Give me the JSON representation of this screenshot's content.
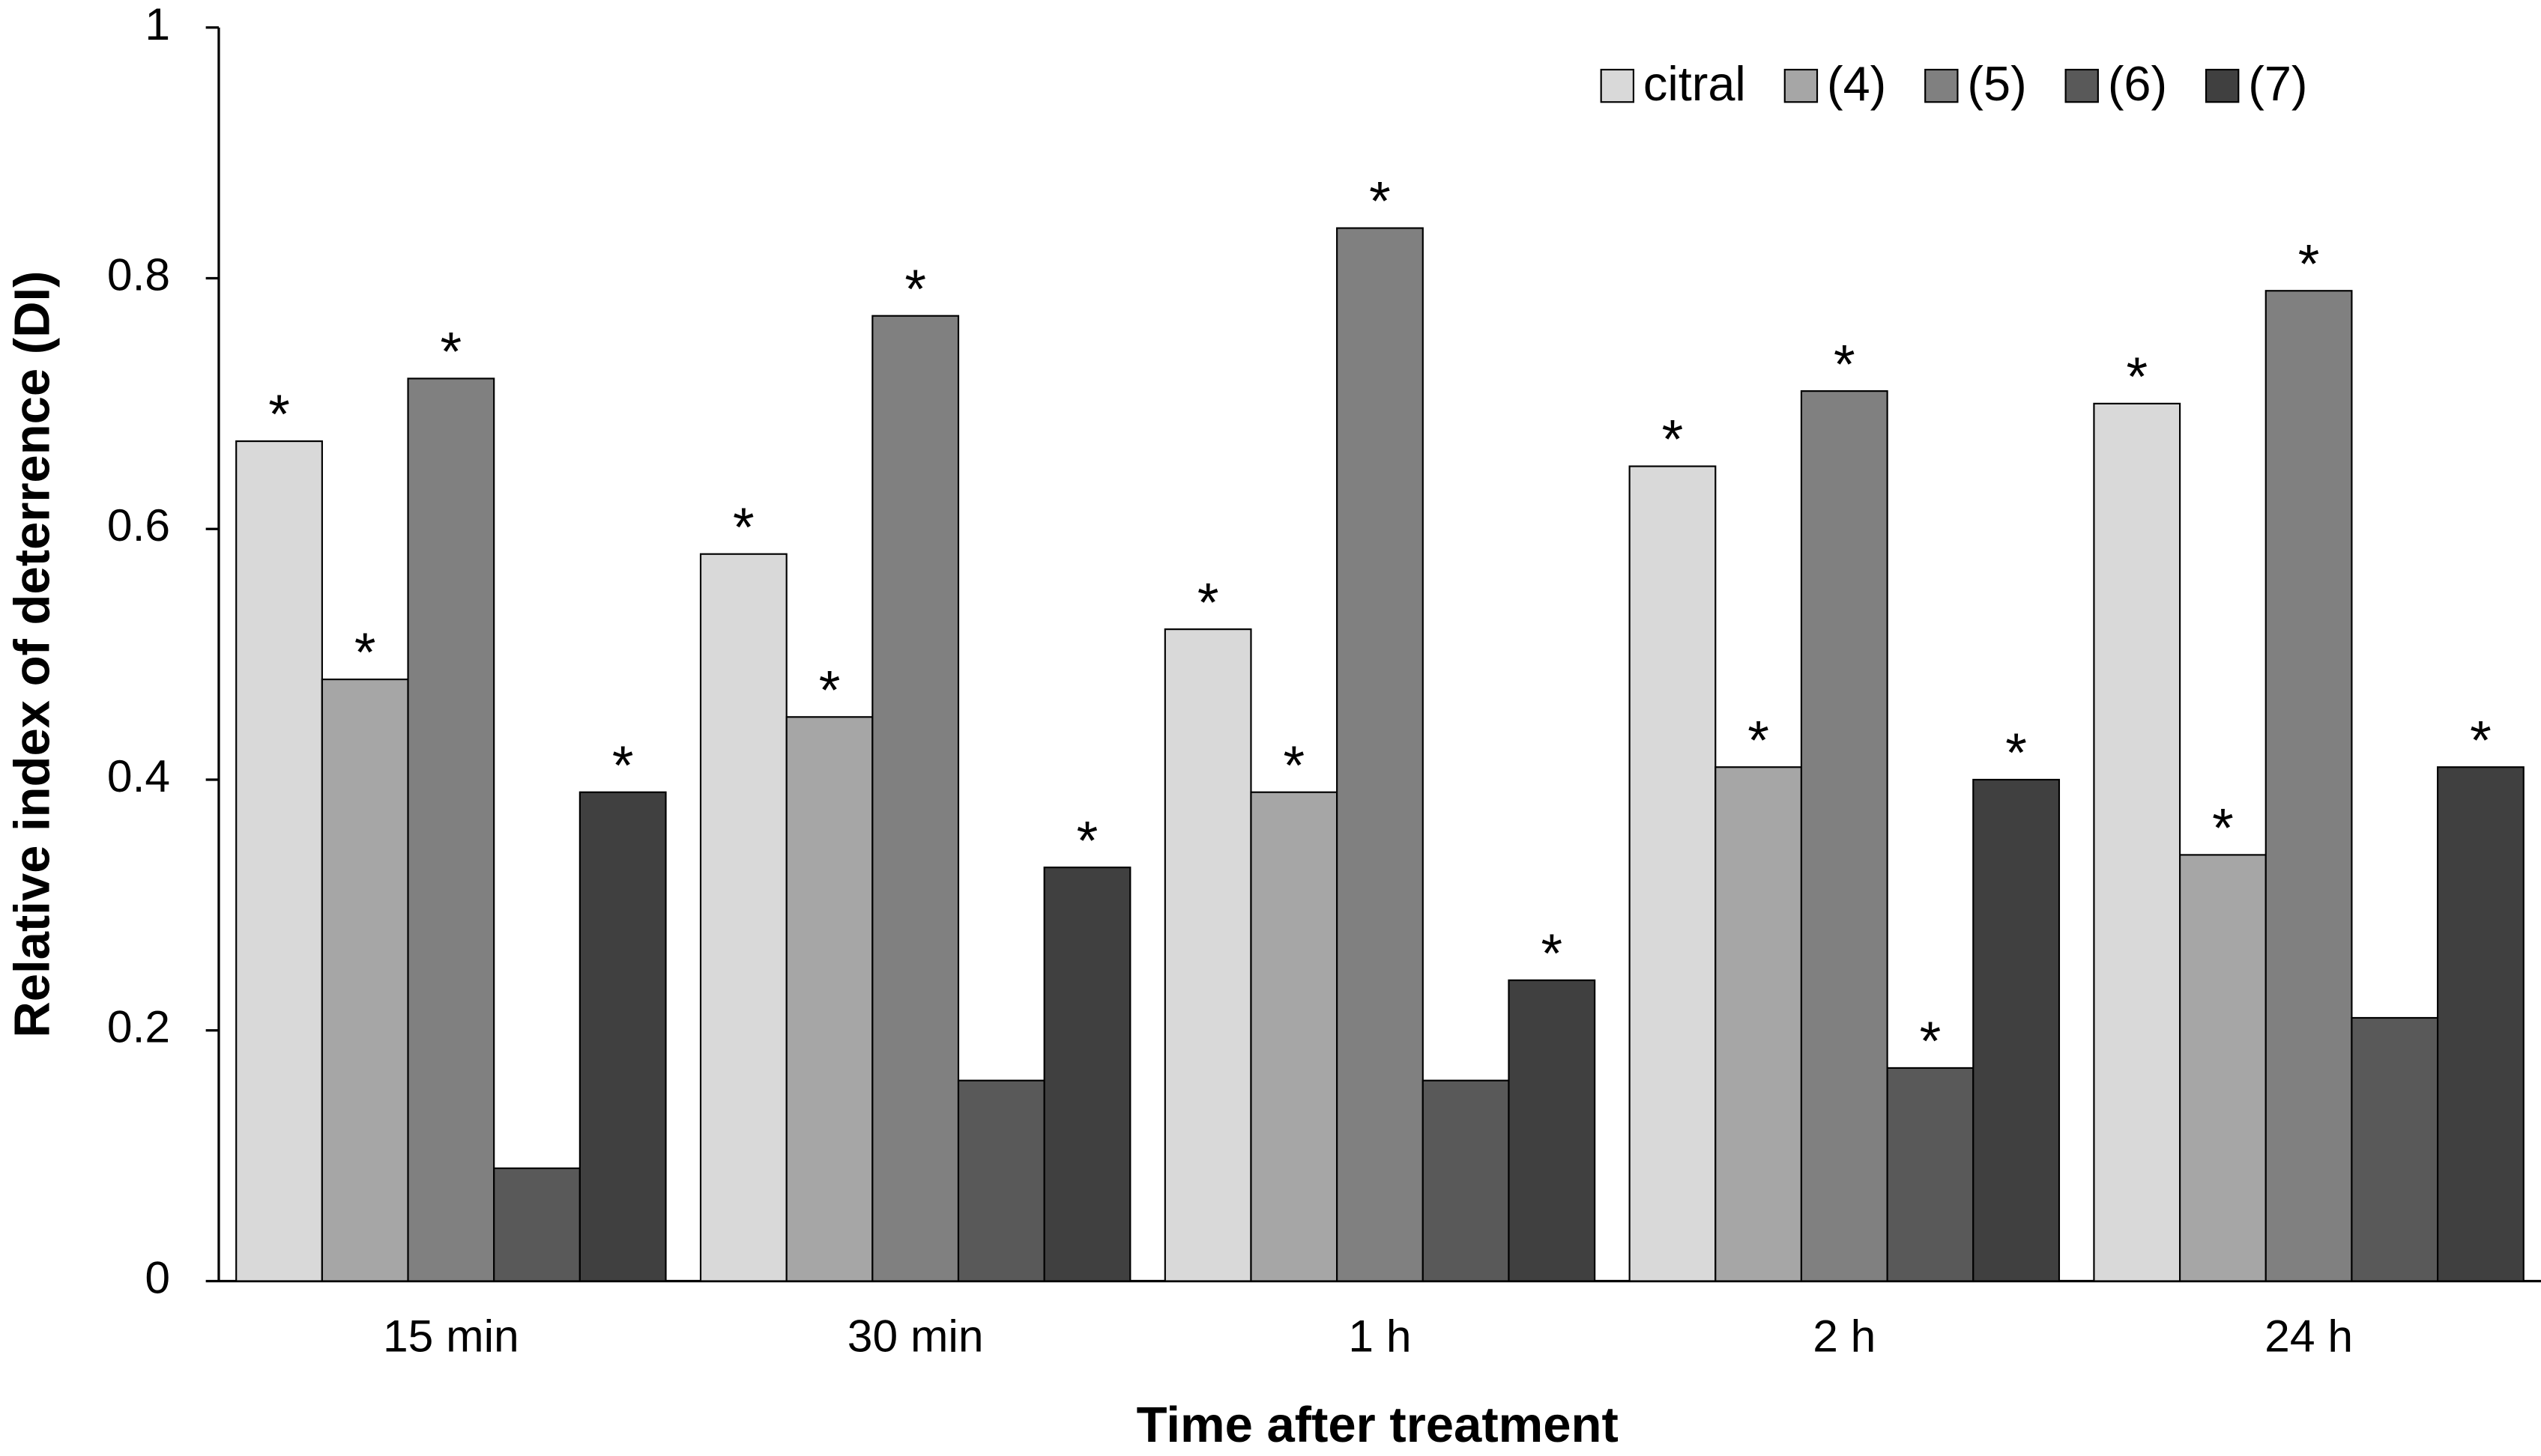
{
  "chart_data": {
    "type": "bar",
    "x_label": "Time after treatment",
    "y_label": "Relative index of deterrence (DI)",
    "categories": [
      "15 min",
      "30 min",
      "1 h",
      "2 h",
      "24 h"
    ],
    "series": [
      {
        "name": "citral",
        "color": "#d9d9d9",
        "values": [
          0.67,
          0.58,
          0.52,
          0.65,
          0.7
        ],
        "labels": [
          "*",
          "*",
          "*",
          "*",
          "*"
        ]
      },
      {
        "name": "(4)",
        "color": "#a6a6a6",
        "values": [
          0.48,
          0.45,
          0.39,
          0.41,
          0.34
        ],
        "labels": [
          "*",
          "*",
          "*",
          "*",
          "*"
        ]
      },
      {
        "name": "(5)",
        "color": "#808080",
        "values": [
          0.72,
          0.77,
          0.84,
          0.71,
          0.79
        ],
        "labels": [
          "*",
          "*",
          "*",
          "*",
          "*"
        ]
      },
      {
        "name": "(6)",
        "color": "#595959",
        "values": [
          0.09,
          0.16,
          0.16,
          0.17,
          0.21
        ],
        "labels": [
          null,
          null,
          null,
          "*",
          null
        ]
      },
      {
        "name": "(7)",
        "color": "#404040",
        "values": [
          0.39,
          0.33,
          0.24,
          0.4,
          0.41
        ],
        "labels": [
          "*",
          "*",
          "*",
          "*",
          "*"
        ]
      }
    ],
    "ylim": [
      0,
      1
    ],
    "yticks": [
      0,
      0.2,
      0.4,
      0.6,
      0.8,
      1
    ],
    "legend": "top-right",
    "grid": false
  }
}
